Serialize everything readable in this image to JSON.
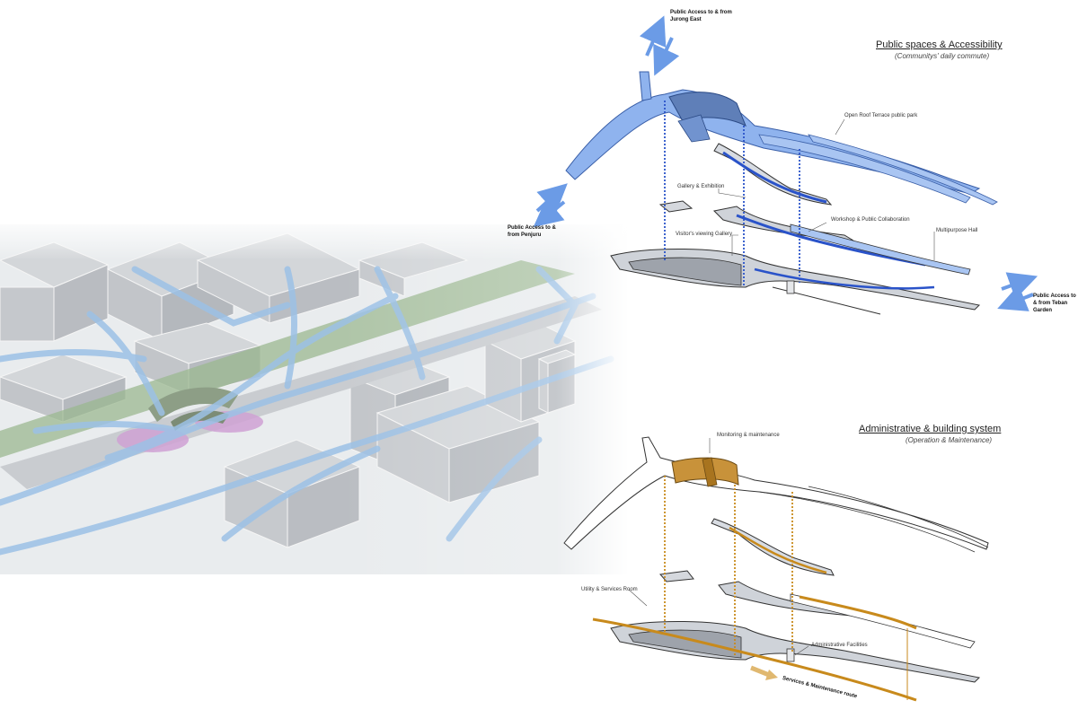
{
  "colors": {
    "public_blue": "#5b8fe0",
    "admin_orange": "#c8923a",
    "dotted_blue": "#2a53c9",
    "dotted_orange": "#c88a1c",
    "green_park": "#9bb890",
    "pink_zone": "#cfa1d3"
  },
  "top_panel": {
    "title": "Public spaces & Accessibility",
    "subtitle": "(Communitys' daily commute)",
    "access_north": "Public Access to & from Jurong East",
    "access_west": "Public Access to & from Penjuru",
    "access_east": "Public Access to & from Teban Garden",
    "labels": {
      "roof_park": "Open Roof Terrace public park",
      "gallery": "Gallery & Exhibition",
      "workshop": "Workshop & Public Collaboration",
      "viewing_gallery": "Visitor's viewing Gallery",
      "multipurpose": "Multipurpose Hall"
    }
  },
  "bottom_panel": {
    "title": "Administrative & building system",
    "subtitle": "(Operation & Maintenance)",
    "labels": {
      "monitoring": "Monitoring & maintenance",
      "utility": "Utility & Services Room",
      "admin": "Administrative Facilities",
      "service_route": "Services & Maintenance route"
    }
  }
}
